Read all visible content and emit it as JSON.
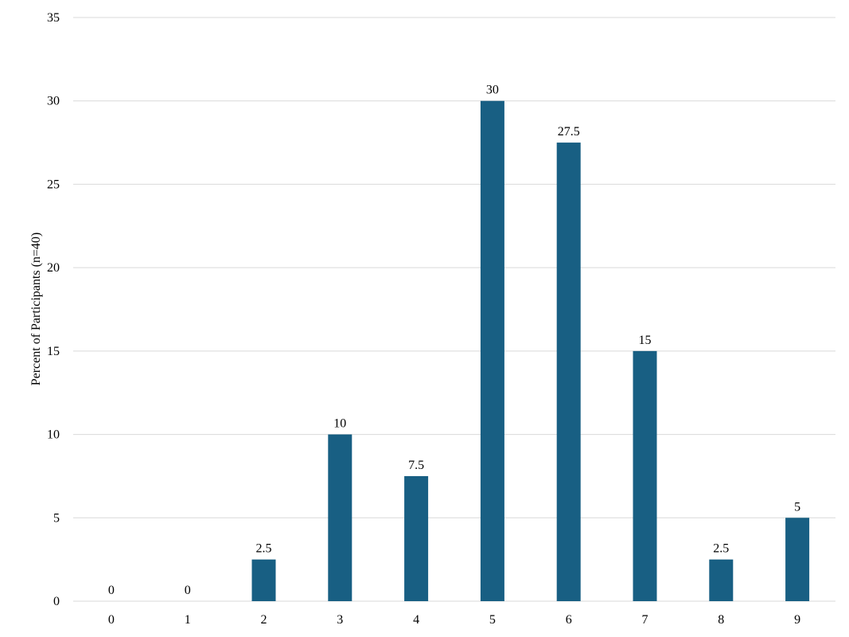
{
  "chart_data": {
    "type": "bar",
    "title": "",
    "xlabel": "",
    "ylabel": "Percent of Participants (n=40)",
    "categories": [
      "0",
      "1",
      "2",
      "3",
      "4",
      "5",
      "6",
      "7",
      "8",
      "9"
    ],
    "values": [
      0,
      0,
      2.5,
      10,
      7.5,
      30,
      27.5,
      15,
      2.5,
      5
    ],
    "data_labels": [
      "0",
      "0",
      "2.5",
      "10",
      "7.5",
      "30",
      "27.5",
      "15",
      "2.5",
      "5"
    ],
    "ylim": [
      0,
      35
    ],
    "yticks": [
      0,
      5,
      10,
      15,
      20,
      25,
      30,
      35
    ],
    "grid": true,
    "legend": "none",
    "colors": {
      "bar": "#185f83",
      "grid": "#d9d9d9"
    }
  }
}
